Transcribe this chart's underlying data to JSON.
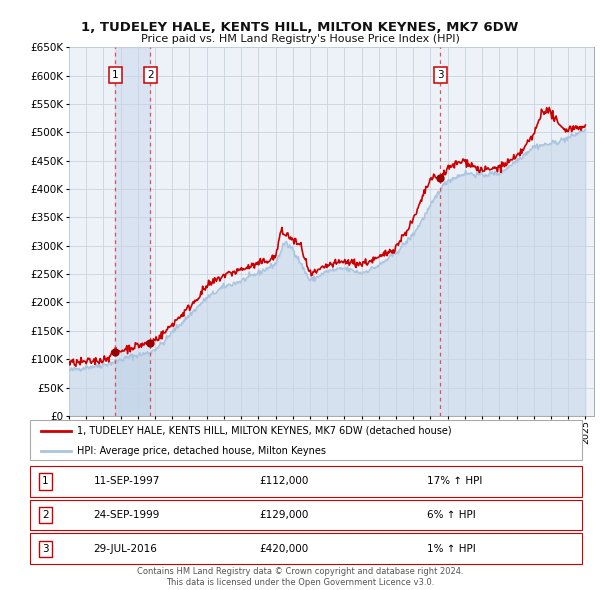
{
  "title": "1, TUDELEY HALE, KENTS HILL, MILTON KEYNES, MK7 6DW",
  "subtitle": "Price paid vs. HM Land Registry's House Price Index (HPI)",
  "ylim": [
    0,
    650000
  ],
  "yticks": [
    0,
    50000,
    100000,
    150000,
    200000,
    250000,
    300000,
    350000,
    400000,
    450000,
    500000,
    550000,
    600000,
    650000
  ],
  "xlim_start": 1995.0,
  "xlim_end": 2025.5,
  "xtick_years": [
    1995,
    1996,
    1997,
    1998,
    1999,
    2000,
    2001,
    2002,
    2003,
    2004,
    2005,
    2006,
    2007,
    2008,
    2009,
    2010,
    2011,
    2012,
    2013,
    2014,
    2015,
    2016,
    2017,
    2018,
    2019,
    2020,
    2021,
    2022,
    2023,
    2024,
    2025
  ],
  "hpi_color": "#aac4e0",
  "price_color": "#cc0000",
  "vline_color": "#dd4444",
  "background_color": "#ffffff",
  "grid_color": "#c8d4e0",
  "chart_bg": "#edf2f8",
  "span_color": "#ccdaee",
  "transactions": [
    {
      "num": 1,
      "date_year": 1997.7,
      "price": 112000,
      "label": "1",
      "hpi_pct": 17
    },
    {
      "num": 2,
      "date_year": 1999.73,
      "price": 129000,
      "label": "2",
      "hpi_pct": 6
    },
    {
      "num": 3,
      "date_year": 2016.57,
      "price": 420000,
      "label": "3",
      "hpi_pct": 1
    }
  ],
  "legend_entries": [
    "1, TUDELEY HALE, KENTS HILL, MILTON KEYNES, MK7 6DW (detached house)",
    "HPI: Average price, detached house, Milton Keynes"
  ],
  "table_rows": [
    {
      "num": "1",
      "date": "11-SEP-1997",
      "price": "£112,000",
      "hpi": "17% ↑ HPI"
    },
    {
      "num": "2",
      "date": "24-SEP-1999",
      "price": "£129,000",
      "hpi": "6% ↑ HPI"
    },
    {
      "num": "3",
      "date": "29-JUL-2016",
      "price": "£420,000",
      "hpi": "1% ↑ HPI"
    }
  ],
  "footer_line1": "Contains HM Land Registry data © Crown copyright and database right 2024.",
  "footer_line2": "This data is licensed under the Open Government Licence v3.0."
}
